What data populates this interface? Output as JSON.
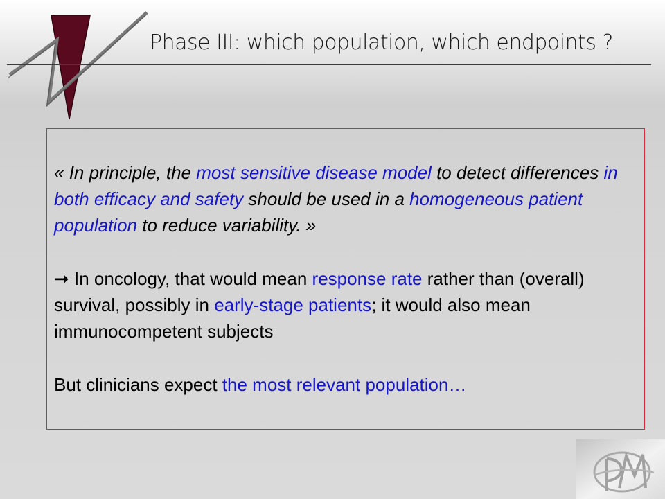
{
  "title": "Phase III: which population, which endpoints ?",
  "quote": {
    "open": "« ",
    "t1": "In principle, the ",
    "h1": "most sensitive disease model",
    "t2": " to detect differences ",
    "h2": "in both efficacy and safety",
    "t3": " should be used in a ",
    "h3": "homogeneous patient population",
    "t4": " to reduce variability. »"
  },
  "point": {
    "arrow": "➞",
    "t1": " In oncology, that would mean ",
    "h1": "response rate",
    "t2": " rather than (overall) survival, possibly in ",
    "h2": "early-stage patients",
    "t3": "; it would also mean immunocompetent subjects"
  },
  "closing": {
    "t1": "But clinicians expect ",
    "h1": "the most relevant population…"
  },
  "colors": {
    "highlight": "#1616c8",
    "box_border": "#d8283a",
    "logo_wedge": "#5a0a1e",
    "title_rule": "#7a1f2e"
  },
  "icons": {
    "header_logo": "zigzag-wedge-logo-icon",
    "corner_logo": "dpm-monogram-logo-icon"
  }
}
